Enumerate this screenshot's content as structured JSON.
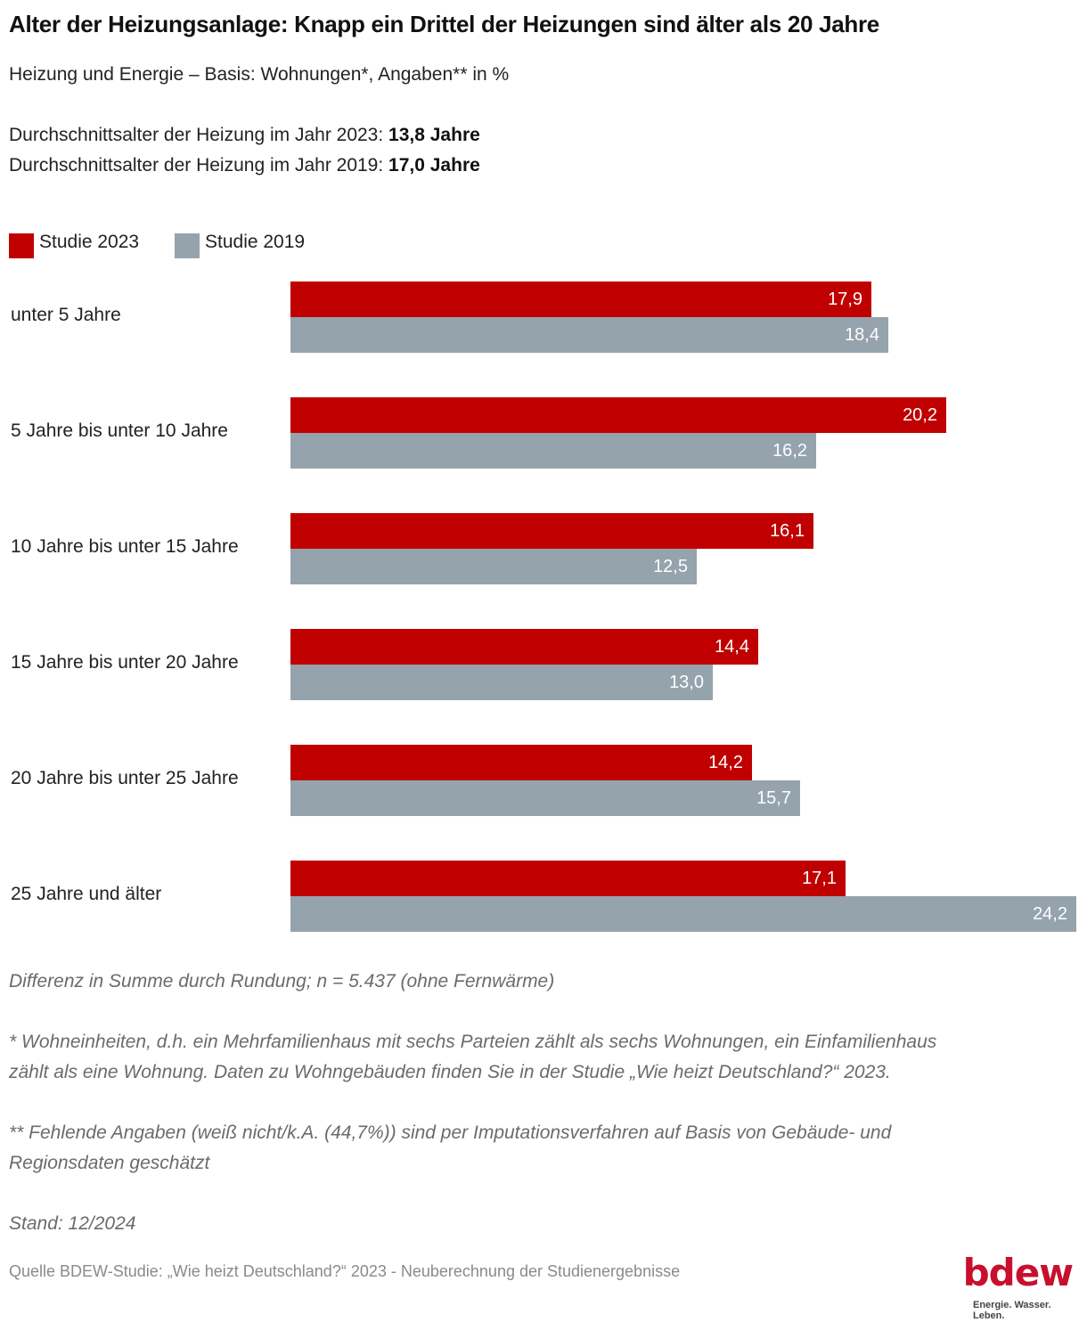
{
  "header": {
    "title": "Alter der Heizungsanlage: Knapp ein Drittel der Heizungen sind älter als 20 Jahre",
    "subtitle": "Heizung und Energie – Basis: Wohnungen*, Angaben** in %",
    "avg_2023_prefix": "Durchschnittsalter der Heizung im Jahr 2023:",
    "avg_2023_value": "13,8 Jahre",
    "avg_2019_prefix": "Durchschnittsalter der Heizung im Jahr 2019:",
    "avg_2019_value": "17,0 Jahre"
  },
  "colors": {
    "series_2023": "#c00000",
    "series_2019": "#95a3ad",
    "logo": "#c8102e"
  },
  "chart_data": {
    "type": "bar",
    "orientation": "horizontal",
    "title": "Alter der Heizungsanlage: Knapp ein Drittel der Heizungen sind älter als 20 Jahre",
    "xlabel": "",
    "ylabel": "",
    "xlim": [
      0,
      24.2
    ],
    "grid": false,
    "legend_position": "top-left",
    "categories": [
      "unter 5 Jahre",
      "5 Jahre bis unter 10 Jahre",
      "10 Jahre bis unter 15 Jahre",
      "15 Jahre bis unter 20 Jahre",
      "20 Jahre bis unter 25 Jahre",
      "25 Jahre und älter"
    ],
    "series": [
      {
        "name": "Studie 2023",
        "values": [
          17.9,
          20.2,
          16.1,
          14.4,
          14.2,
          17.1
        ],
        "labels": [
          "17,9",
          "20,2",
          "16,1",
          "14,4",
          "14,2",
          "17,1"
        ]
      },
      {
        "name": "Studie 2019",
        "values": [
          18.4,
          16.2,
          12.5,
          13.0,
          15.7,
          24.2
        ],
        "labels": [
          "18,4",
          "16,2",
          "12,5",
          "13,0",
          "15,7",
          "24,2"
        ]
      }
    ]
  },
  "notes": {
    "rounding": "Differenz in Summe durch Rundung; n = 5.437 (ohne Fernwärme)",
    "footnote1_line1": "* Wohneinheiten, d.h. ein Mehrfamilienhaus mit sechs Parteien zählt als sechs Wohnungen, ein Einfamilienhaus",
    "footnote1_line2": "zählt als eine Wohnung. Daten zu Wohngebäuden finden Sie in der Studie „Wie heizt Deutschland?“ 2023.",
    "footnote2_line1": "** Fehlende Angaben (weiß nicht/k.A. (44,7%)) sind per Imputationsverfahren auf Basis von Gebäude- und",
    "footnote2_line2": "Regionsdaten geschätzt",
    "stand": "Stand: 12/2024",
    "source": "Quelle BDEW-Studie: „Wie heizt Deutschland?“ 2023 - Neuberechnung der Studienergebnisse"
  },
  "logo": {
    "wordmark": "bdew",
    "tagline": "Energie. Wasser. Leben."
  }
}
